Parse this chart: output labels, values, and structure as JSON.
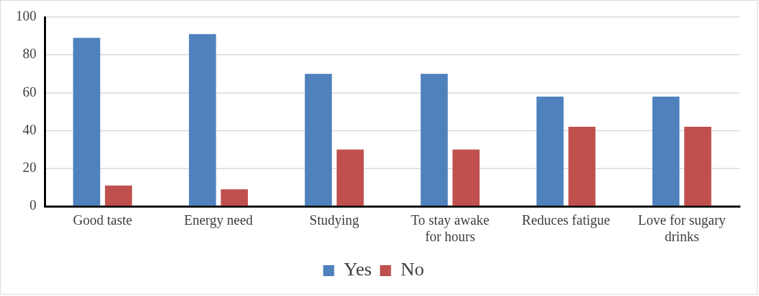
{
  "chart_data": {
    "type": "bar",
    "categories": [
      "Good taste",
      "Energy need",
      "Studying",
      "To stay awake for hours",
      "Reduces fatigue",
      "Love for sugary drinks"
    ],
    "series": [
      {
        "name": "Yes",
        "color": "#4f81bd",
        "values": [
          89,
          91,
          70,
          70,
          58,
          58
        ]
      },
      {
        "name": "No",
        "color": "#c0504d",
        "values": [
          11,
          9,
          30,
          30,
          42,
          42
        ]
      }
    ],
    "ylim": [
      0,
      100
    ],
    "yticks": [
      0,
      20,
      40,
      60,
      80,
      100
    ],
    "grid": "y",
    "legend": "bottom"
  }
}
